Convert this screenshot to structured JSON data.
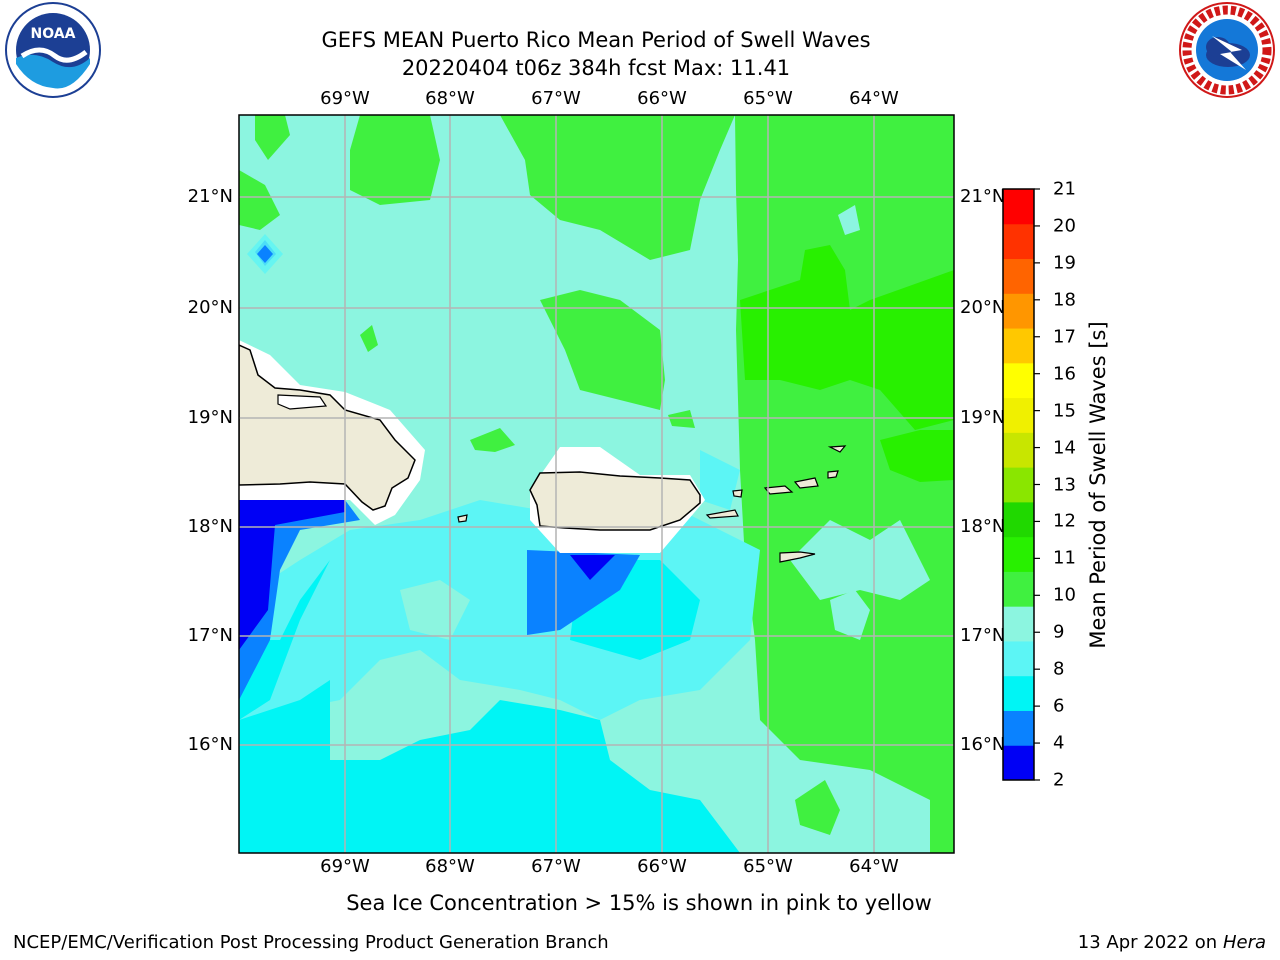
{
  "header": {
    "title_line1": "GEFS MEAN Puerto Rico Mean Period of Swell Waves",
    "title_line2": "20220404 t06z 384h fcst   Max: 11.41"
  },
  "logos": {
    "noaa_text": "NOAA",
    "noaa_ring_text": "NATIONAL OCEANIC AND ATMOSPHERIC ADMINISTRATION · U.S. DEPARTMENT OF COMMERCE",
    "nws_ring_text": "NATIONAL WEATHER SERVICE"
  },
  "axes": {
    "lon_labels": [
      "69°W",
      "68°W",
      "67°W",
      "66°W",
      "65°W",
      "64°W"
    ],
    "lat_labels": [
      "21°N",
      "20°N",
      "19°N",
      "18°N",
      "17°N",
      "16°N"
    ]
  },
  "colorbar": {
    "title": "Mean Period of Swell Waves [s]",
    "tick_labels": [
      "21",
      "20",
      "19",
      "18",
      "17",
      "16",
      "15",
      "14",
      "13",
      "12",
      "11",
      "10",
      "9",
      "8",
      "6",
      "4",
      "2"
    ],
    "levels": [
      2,
      4,
      6,
      8,
      9,
      10,
      11,
      12,
      13,
      14,
      15,
      16,
      17,
      18,
      19,
      20,
      21
    ],
    "colors": [
      "#0000f5",
      "#0a82ff",
      "#00f5f5",
      "#5cf5f5",
      "#8cf5e0",
      "#40f040",
      "#28f000",
      "#20d800",
      "#8ae600",
      "#c8e600",
      "#f0f000",
      "#ffff00",
      "#ffc800",
      "#ff9600",
      "#ff6400",
      "#ff3200",
      "#ff0000"
    ]
  },
  "footer": {
    "note": "Sea Ice Concentration > 15% is shown in pink to yellow",
    "left": "NCEP/EMC/Verification Post Processing Product Generation Branch",
    "right_prefix": "13 Apr 2022 on",
    "right_host": "Hera"
  }
}
